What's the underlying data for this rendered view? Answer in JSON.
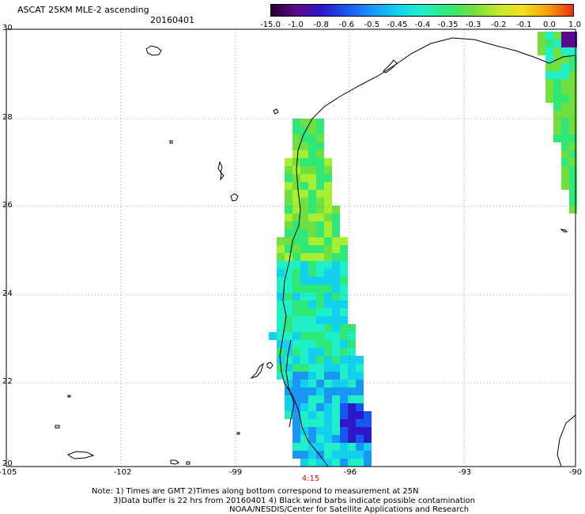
{
  "header": {
    "title": "ASCAT 25KM MLE-2 ascending",
    "date": "20160401"
  },
  "colorbar": {
    "labels": [
      "-15.0",
      "-1.0",
      "-0.8",
      "-0.6",
      "-0.5",
      "-0.45",
      "-0.4",
      "-0.35",
      "-0.3",
      "-0.2",
      "-0.1",
      "0.0",
      "1.0"
    ],
    "colors": [
      "#2a0030",
      "#5b0a8a",
      "#2d17c8",
      "#1856f0",
      "#1a96f5",
      "#12d0ee",
      "#20f0c8",
      "#30e878",
      "#6fe040",
      "#c0e830",
      "#f4e020",
      "#f5a010",
      "#e83010"
    ]
  },
  "axes": {
    "lat_labels": [
      "30",
      "28",
      "26",
      "24",
      "22",
      "20"
    ],
    "lon_labels": [
      "-105",
      "-102",
      "-99",
      "-96",
      "-93",
      "-90"
    ]
  },
  "pass_time": "4:15",
  "footer": {
    "line1": "Note: 1) Times are GMT 2)Times along bottom correspond to measurement at 25N",
    "line2": "3)Data buffer is 22 hrs from 20160401 4) Black wind barbs indicate possible contamination",
    "line3": "NOAA/NESDIS/Center for Satellite Applications and Research"
  }
}
